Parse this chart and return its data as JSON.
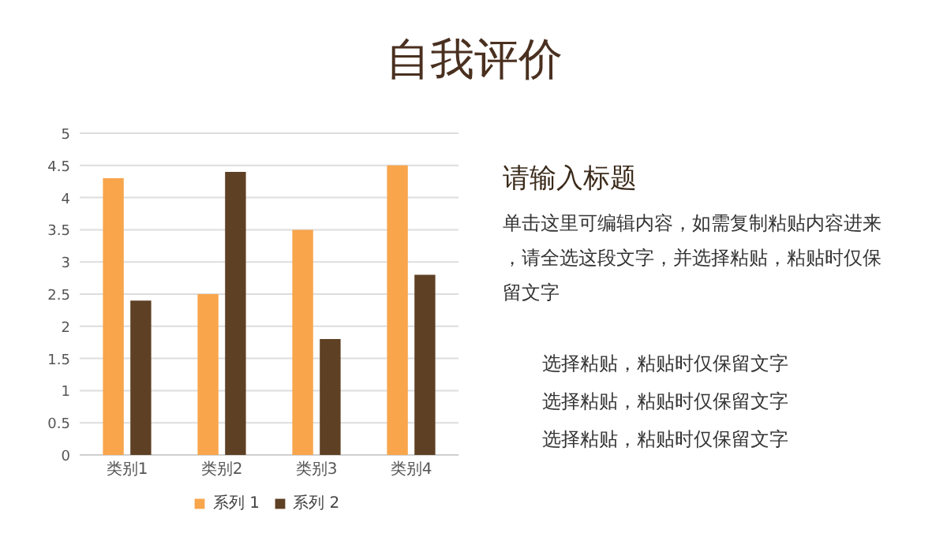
{
  "chart_data": [
    {
      "type": "bar",
      "title": "自我评价",
      "categories": [
        "类别1",
        "类别2",
        "类别3",
        "类别4"
      ],
      "series": [
        {
          "name": "系列 1",
          "color": "#f8a54c",
          "values": [
            4.3,
            2.5,
            3.5,
            4.5
          ]
        },
        {
          "name": "系列 2",
          "color": "#5e4024",
          "values": [
            2.4,
            4.4,
            1.8,
            2.8
          ]
        }
      ],
      "ylim": [
        0,
        5
      ],
      "yticks": [
        0,
        0.5,
        1,
        1.5,
        2,
        2.5,
        3,
        3.5,
        4,
        4.5,
        5
      ],
      "grid": "y",
      "legend": "bottom"
    },
    {
      "type": "other",
      "title": "请输入标题",
      "annotations": [
        "单击这里可编辑内容，如需复制粘贴内容进来，请全选这段文字，并选择粘贴，粘贴时仅保留文字",
        "选择粘贴，粘贴时仅保留文字",
        "选择粘贴，粘贴时仅保留文字",
        "选择粘贴，粘贴时仅保留文字"
      ]
    }
  ]
}
